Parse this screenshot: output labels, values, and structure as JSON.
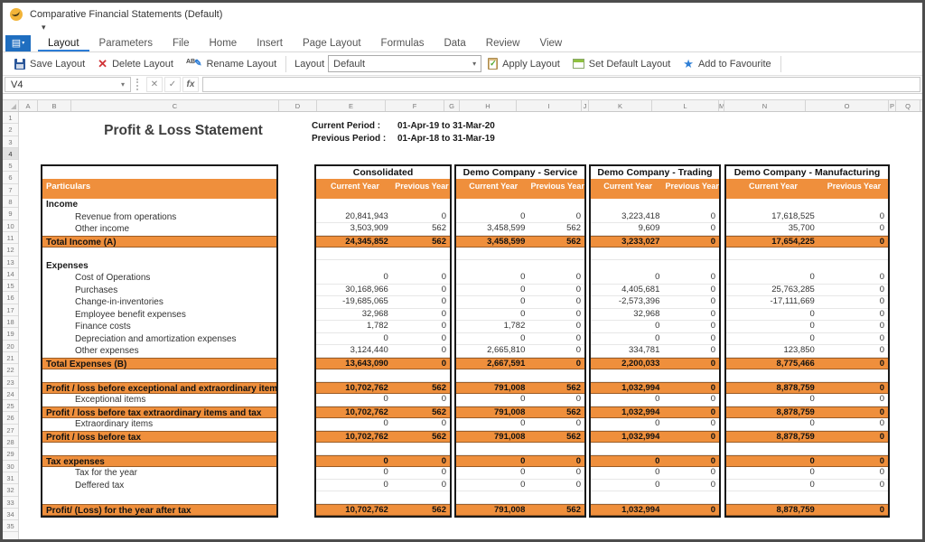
{
  "window": {
    "title": "Comparative Financial Statements (Default)"
  },
  "ribbon": {
    "tabs": [
      "Layout",
      "Parameters",
      "File",
      "Home",
      "Insert",
      "Page Layout",
      "Formulas",
      "Data",
      "Review",
      "View"
    ],
    "active_tab": "Layout"
  },
  "toolbar": {
    "save_label": "Save Layout",
    "delete_label": "Delete Layout",
    "rename_label": "Rename Layout",
    "layout_label": "Layout",
    "layout_value": "Default",
    "apply_label": "Apply Layout",
    "set_default_label": "Set Default Layout",
    "favourite_label": "Add to Favourite"
  },
  "formula_bar": {
    "cell_ref": "V4",
    "formula": ""
  },
  "icons": {
    "dropdown": "▾",
    "menu": "▤",
    "delete": "✕",
    "rename_ab": "AB",
    "rename_pencil": "✎",
    "favourite": "★",
    "cancel": "✕",
    "confirm": "✓",
    "fx": "fx"
  },
  "colors": {
    "orange_band": "#EF8F3C",
    "active_tab_underline": "#2B7CD6",
    "menu_button_blue": "#1F6EC0",
    "delete_red": "#D13438"
  },
  "sheet": {
    "column_headers": [
      "A",
      "B",
      "C",
      "D",
      "E",
      "F",
      "G",
      "H",
      "I",
      "J",
      "K",
      "L",
      "M",
      "N",
      "O",
      "P",
      "Q"
    ],
    "row_count": 35,
    "selected_row": 4,
    "title": "Profit & Loss Statement",
    "current_period_label": "Current Period :",
    "current_period": "01-Apr-19 to 31-Mar-20",
    "previous_period_label": "Previous Period :",
    "previous_period": "01-Apr-18 to 31-Mar-19"
  },
  "statement": {
    "particulars_header": "Particulars",
    "col_headers": [
      "Current Year",
      "Previous Year"
    ],
    "companies": [
      "Consolidated",
      "Demo Company - Service",
      "Demo Company - Trading",
      "Demo Company - Manufacturing"
    ],
    "rows": [
      {
        "label": "Income",
        "type": "section",
        "values": null
      },
      {
        "label": "Revenue from operations",
        "type": "item",
        "values": [
          [
            "20,841,943",
            "0"
          ],
          [
            "0",
            "0"
          ],
          [
            "3,223,418",
            "0"
          ],
          [
            "17,618,525",
            "0"
          ]
        ]
      },
      {
        "label": "Other income",
        "type": "item",
        "values": [
          [
            "3,503,909",
            "562"
          ],
          [
            "3,458,599",
            "562"
          ],
          [
            "9,609",
            "0"
          ],
          [
            "35,700",
            "0"
          ]
        ]
      },
      {
        "label": "Total Income (A)",
        "type": "total",
        "values": [
          [
            "24,345,852",
            "562"
          ],
          [
            "3,458,599",
            "562"
          ],
          [
            "3,233,027",
            "0"
          ],
          [
            "17,654,225",
            "0"
          ]
        ]
      },
      {
        "label": "",
        "type": "blank",
        "values": null
      },
      {
        "label": "Expenses",
        "type": "section",
        "values": null
      },
      {
        "label": "Cost of Operations",
        "type": "item",
        "values": [
          [
            "0",
            "0"
          ],
          [
            "0",
            "0"
          ],
          [
            "0",
            "0"
          ],
          [
            "0",
            "0"
          ]
        ]
      },
      {
        "label": "Purchases",
        "type": "item",
        "values": [
          [
            "30,168,966",
            "0"
          ],
          [
            "0",
            "0"
          ],
          [
            "4,405,681",
            "0"
          ],
          [
            "25,763,285",
            "0"
          ]
        ]
      },
      {
        "label": "Change-in-inventories",
        "type": "item",
        "values": [
          [
            "-19,685,065",
            "0"
          ],
          [
            "0",
            "0"
          ],
          [
            "-2,573,396",
            "0"
          ],
          [
            "-17,111,669",
            "0"
          ]
        ]
      },
      {
        "label": "Employee benefit expenses",
        "type": "item",
        "values": [
          [
            "32,968",
            "0"
          ],
          [
            "0",
            "0"
          ],
          [
            "32,968",
            "0"
          ],
          [
            "0",
            "0"
          ]
        ]
      },
      {
        "label": "Finance costs",
        "type": "item",
        "values": [
          [
            "1,782",
            "0"
          ],
          [
            "1,782",
            "0"
          ],
          [
            "0",
            "0"
          ],
          [
            "0",
            "0"
          ]
        ]
      },
      {
        "label": "Depreciation and amortization expenses",
        "type": "item",
        "values": [
          [
            "0",
            "0"
          ],
          [
            "0",
            "0"
          ],
          [
            "0",
            "0"
          ],
          [
            "0",
            "0"
          ]
        ]
      },
      {
        "label": "Other expenses",
        "type": "item",
        "values": [
          [
            "3,124,440",
            "0"
          ],
          [
            "2,665,810",
            "0"
          ],
          [
            "334,781",
            "0"
          ],
          [
            "123,850",
            "0"
          ]
        ]
      },
      {
        "label": "Total Expenses (B)",
        "type": "total",
        "values": [
          [
            "13,643,090",
            "0"
          ],
          [
            "2,667,591",
            "0"
          ],
          [
            "2,200,033",
            "0"
          ],
          [
            "8,775,466",
            "0"
          ]
        ]
      },
      {
        "label": "",
        "type": "blank",
        "values": null
      },
      {
        "label": "Profit / loss before exceptional  and extraordinary items (A-B",
        "type": "total",
        "values": [
          [
            "10,702,762",
            "562"
          ],
          [
            "791,008",
            "562"
          ],
          [
            "1,032,994",
            "0"
          ],
          [
            "8,878,759",
            "0"
          ]
        ]
      },
      {
        "label": "Exceptional items",
        "type": "item",
        "values": [
          [
            "0",
            "0"
          ],
          [
            "0",
            "0"
          ],
          [
            "0",
            "0"
          ],
          [
            "0",
            "0"
          ]
        ]
      },
      {
        "label": "Profit / loss before tax extraordinary items and tax",
        "type": "total",
        "values": [
          [
            "10,702,762",
            "562"
          ],
          [
            "791,008",
            "562"
          ],
          [
            "1,032,994",
            "0"
          ],
          [
            "8,878,759",
            "0"
          ]
        ]
      },
      {
        "label": "Extraordinary items",
        "type": "item",
        "values": [
          [
            "0",
            "0"
          ],
          [
            "0",
            "0"
          ],
          [
            "0",
            "0"
          ],
          [
            "0",
            "0"
          ]
        ]
      },
      {
        "label": "Profit / loss before tax",
        "type": "total",
        "values": [
          [
            "10,702,762",
            "562"
          ],
          [
            "791,008",
            "562"
          ],
          [
            "1,032,994",
            "0"
          ],
          [
            "8,878,759",
            "0"
          ]
        ]
      },
      {
        "label": "",
        "type": "blank",
        "values": null
      },
      {
        "label": "Tax expenses",
        "type": "total",
        "values": [
          [
            "0",
            "0"
          ],
          [
            "0",
            "0"
          ],
          [
            "0",
            "0"
          ],
          [
            "0",
            "0"
          ]
        ]
      },
      {
        "label": "Tax for the year",
        "type": "item",
        "values": [
          [
            "0",
            "0"
          ],
          [
            "0",
            "0"
          ],
          [
            "0",
            "0"
          ],
          [
            "0",
            "0"
          ]
        ]
      },
      {
        "label": "Deffered tax",
        "type": "item",
        "values": [
          [
            "0",
            "0"
          ],
          [
            "0",
            "0"
          ],
          [
            "0",
            "0"
          ],
          [
            "0",
            "0"
          ]
        ]
      },
      {
        "label": "",
        "type": "blank",
        "values": null
      },
      {
        "label": "Profit/ (Loss) for the year after tax",
        "type": "total",
        "values": [
          [
            "10,702,762",
            "562"
          ],
          [
            "791,008",
            "562"
          ],
          [
            "1,032,994",
            "0"
          ],
          [
            "8,878,759",
            "0"
          ]
        ]
      }
    ]
  }
}
